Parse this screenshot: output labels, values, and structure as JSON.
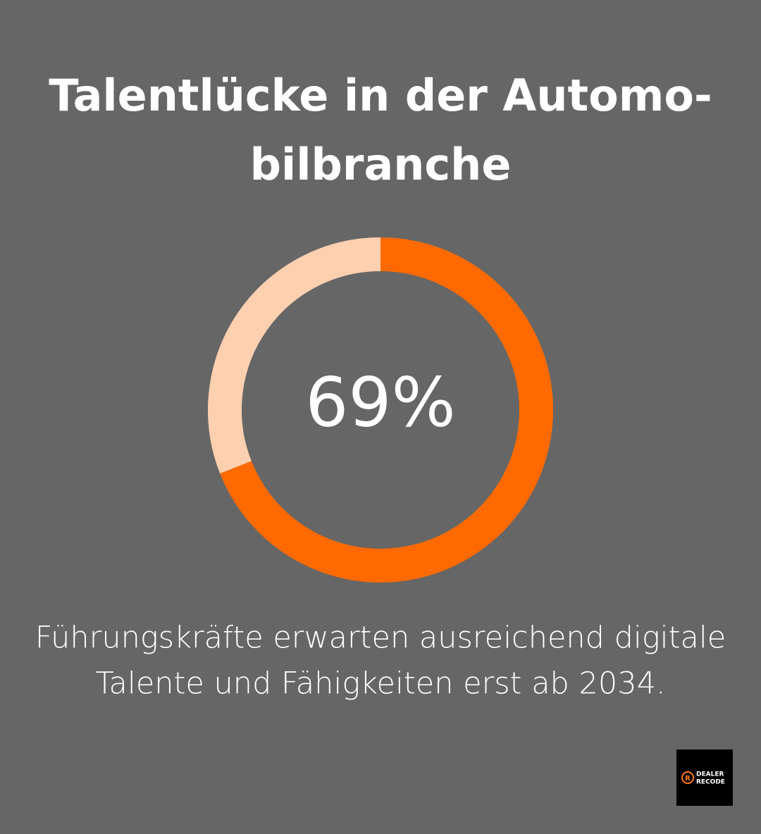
{
  "chart_data": {
    "type": "donut",
    "title": [
      "Talentlücke in der Automo-",
      "bilbranche"
    ],
    "values": [
      69,
      31
    ],
    "value_labels": [
      "69%",
      null
    ],
    "colors": [
      "#ff6a00",
      "#ffd0b0"
    ],
    "description": [
      "Führungskräfte erwarten ausreichend digitale",
      "Talente und Fähigkeiten erst ab 2034."
    ]
  },
  "logo": {
    "icon_letter": "R",
    "lines": [
      "DEALER",
      "RECODE"
    ]
  }
}
